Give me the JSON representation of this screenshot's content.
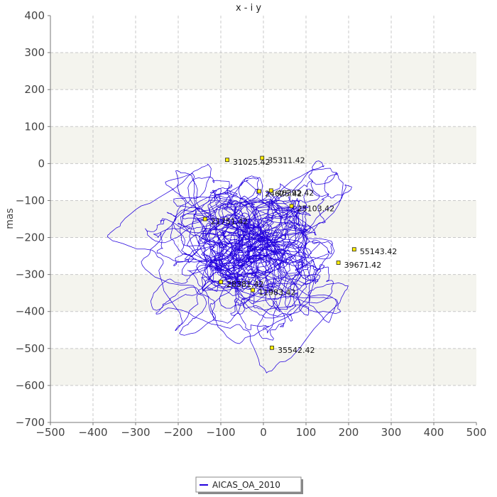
{
  "chart_data": {
    "type": "line",
    "title": "x - i y",
    "xlabel": "",
    "ylabel": "mas",
    "xlim": [
      -500,
      500
    ],
    "ylim": [
      -700,
      400
    ],
    "xticks": [
      -500,
      -400,
      -300,
      -200,
      -100,
      0,
      100,
      200,
      300,
      400,
      500
    ],
    "yticks": [
      400,
      300,
      200,
      100,
      0,
      -100,
      -200,
      -300,
      -400,
      -500,
      -600,
      -700
    ],
    "grid": true,
    "legend_position": "bottom-center",
    "series": [
      {
        "name": "AICAS_OA_2010",
        "color": "#2200dd",
        "center": [
          0,
          -200
        ],
        "x_extent": [
          -460,
          460
        ],
        "y_extent": [
          -590,
          300
        ]
      }
    ],
    "annotations": [
      {
        "x": -85,
        "y": 10,
        "label": "31025.42"
      },
      {
        "x": -3,
        "y": 15,
        "label": "35311.42"
      },
      {
        "x": -10,
        "y": -75,
        "label": "24625.42"
      },
      {
        "x": 18,
        "y": -73,
        "label": "46392.42"
      },
      {
        "x": 66,
        "y": -115,
        "label": "25103.42"
      },
      {
        "x": -137,
        "y": -150,
        "label": "21751.42"
      },
      {
        "x": 213,
        "y": -232,
        "label": "55143.42"
      },
      {
        "x": 176,
        "y": -268,
        "label": "39671.42"
      },
      {
        "x": -100,
        "y": -320,
        "label": "28381.42"
      },
      {
        "x": -25,
        "y": -342,
        "label": "11983.42"
      },
      {
        "x": 20,
        "y": -498,
        "label": "35542.42"
      }
    ]
  }
}
